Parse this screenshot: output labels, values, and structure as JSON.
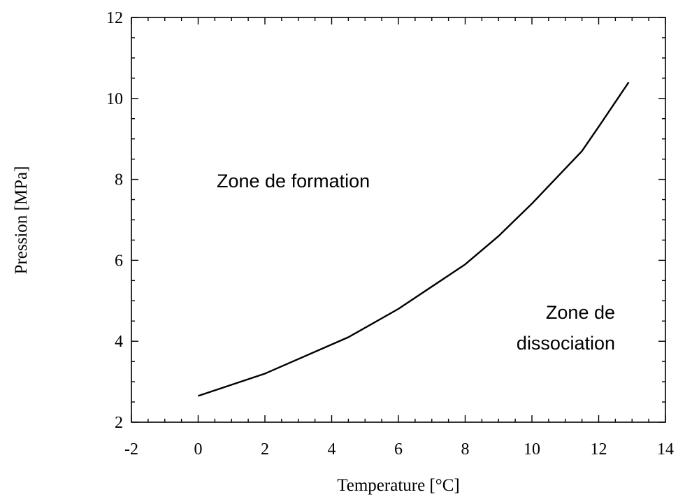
{
  "chart_data": {
    "type": "line",
    "title": "",
    "xlabel": "Temperature [°C]",
    "ylabel": "Pression [MPa]",
    "xlim": [
      -2,
      14
    ],
    "ylim": [
      2,
      12
    ],
    "xticks": [
      "-2",
      "0",
      "2",
      "4",
      "6",
      "8",
      "10",
      "12",
      "14"
    ],
    "yticks": [
      "2",
      "4",
      "6",
      "8",
      "10",
      "12"
    ],
    "grid": false,
    "series": [
      {
        "x": [
          0,
          2,
          4.5,
          6,
          8,
          9,
          9.5,
          10,
          11.5,
          12,
          12.9
        ],
        "y": [
          2.65,
          3.2,
          4.1,
          4.8,
          5.9,
          6.6,
          7.0,
          7.4,
          8.7,
          9.3,
          10.4
        ]
      }
    ],
    "annotations": [
      "Zone de formation",
      "Zone de",
      "dissociation"
    ]
  }
}
